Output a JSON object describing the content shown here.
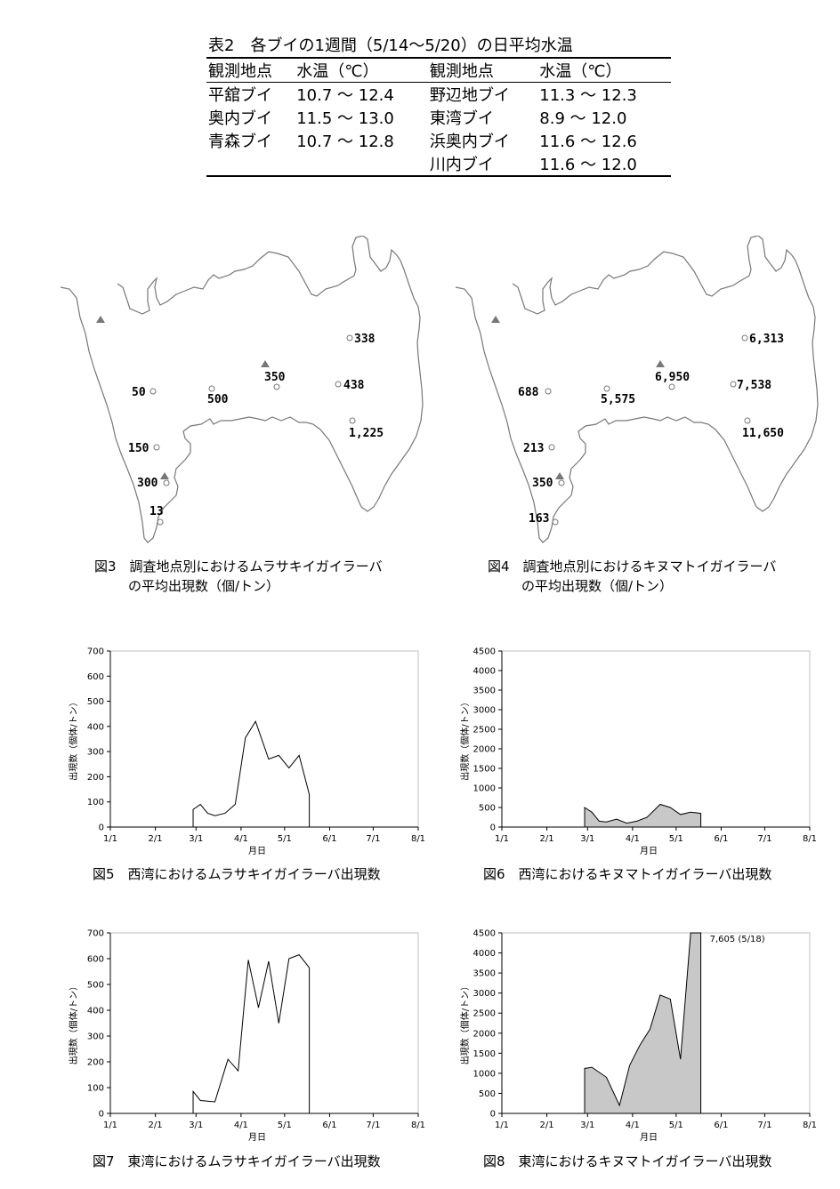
{
  "table2": {
    "caption": "表2　各ブイの1週間（5/14〜5/20）の日平均水温",
    "headers": [
      "観測地点",
      "水温（℃）",
      "観測地点",
      "水温（℃）"
    ],
    "rows": [
      [
        "平舘ブイ",
        "10.7 〜 12.4",
        "野辺地ブイ",
        "11.3 〜 12.3"
      ],
      [
        "奥内ブイ",
        "11.5 〜 13.0",
        "東湾ブイ",
        "8.9 〜 12.0"
      ],
      [
        "青森ブイ",
        "10.7 〜 12.8",
        "浜奥内ブイ",
        "11.6 〜 12.6"
      ],
      [
        "",
        "",
        "川内ブイ",
        "11.6 〜 12.0"
      ]
    ]
  },
  "fig3": {
    "caption_line1": "図3　調査地点別におけるムラサキイガイラーバ",
    "caption_line2": "の平均出現数（個/トン）",
    "labels": [
      "338",
      "350",
      "438",
      "50",
      "500",
      "1,225",
      "150",
      "300",
      "13"
    ]
  },
  "fig4": {
    "caption_line1": "図4　調査地点別におけるキヌマトイガイラーバ",
    "caption_line2": "の平均出現数（個/トン）",
    "labels": [
      "6,313",
      "6,950",
      "7,538",
      "688",
      "5,575",
      "11,650",
      "213",
      "350",
      "163"
    ]
  },
  "chart_data": [
    {
      "id": "fig5",
      "type": "line",
      "title": "図5　西湾におけるムラサキイガイラーバ出現数",
      "xlabel": "月日",
      "ylabel": "出現数（個体/トン）",
      "xticks": [
        "1/1",
        "2/1",
        "3/1",
        "4/1",
        "5/1",
        "6/1",
        "7/1",
        "8/1"
      ],
      "yticks": [
        0,
        100,
        200,
        300,
        400,
        500,
        600,
        700
      ],
      "ylim": [
        0,
        700
      ],
      "x": [
        "2/26",
        "3/3",
        "3/8",
        "3/13",
        "3/20",
        "3/27",
        "4/3",
        "4/10",
        "4/19",
        "4/26",
        "5/3",
        "5/10",
        "5/17"
      ],
      "xdays": [
        57,
        62,
        67,
        72,
        79,
        86,
        93,
        100,
        109,
        116,
        123,
        130,
        137
      ],
      "values": [
        70,
        90,
        55,
        45,
        55,
        90,
        355,
        420,
        270,
        285,
        235,
        285,
        130
      ],
      "fill": false
    },
    {
      "id": "fig6",
      "type": "area",
      "title": "図6　西湾におけるキヌマトイガイラーバ出現数",
      "xlabel": "月日",
      "ylabel": "出現数（個体/トン）",
      "xticks": [
        "1/1",
        "2/1",
        "3/1",
        "4/1",
        "5/1",
        "6/1",
        "7/1",
        "8/1"
      ],
      "yticks": [
        0,
        500,
        1000,
        1500,
        2000,
        2500,
        3000,
        3500,
        4000,
        4500
      ],
      "ylim": [
        0,
        4500
      ],
      "x": [
        "2/26",
        "3/3",
        "3/8",
        "3/13",
        "3/20",
        "3/27",
        "4/3",
        "4/10",
        "4/19",
        "4/26",
        "5/3",
        "5/10",
        "5/17"
      ],
      "xdays": [
        57,
        62,
        67,
        72,
        79,
        86,
        93,
        100,
        109,
        116,
        123,
        130,
        137
      ],
      "values": [
        500,
        380,
        150,
        130,
        200,
        100,
        150,
        250,
        580,
        500,
        320,
        380,
        350
      ],
      "fill": true
    },
    {
      "id": "fig7",
      "type": "line",
      "title": "図7　東湾におけるムラサキイガイラーバ出現数",
      "xlabel": "月日",
      "ylabel": "出現数（個体/トン）",
      "xticks": [
        "1/1",
        "2/1",
        "3/1",
        "4/1",
        "5/1",
        "6/1",
        "7/1",
        "8/1"
      ],
      "yticks": [
        0,
        100,
        200,
        300,
        400,
        500,
        600,
        700
      ],
      "ylim": [
        0,
        700
      ],
      "x": [
        "2/26",
        "3/3",
        "3/13",
        "3/22",
        "3/29",
        "4/5",
        "4/12",
        "4/19",
        "4/26",
        "5/3",
        "5/10",
        "5/17"
      ],
      "xdays": [
        57,
        62,
        72,
        81,
        88,
        95,
        102,
        109,
        116,
        123,
        130,
        137
      ],
      "values": [
        85,
        50,
        45,
        210,
        165,
        595,
        410,
        590,
        350,
        600,
        615,
        565
      ],
      "fill": false
    },
    {
      "id": "fig8",
      "type": "area",
      "title": "図8　東湾におけるキヌマトイガイラーバ出現数",
      "xlabel": "月日",
      "ylabel": "出現数（個体/トン）",
      "xticks": [
        "1/1",
        "2/1",
        "3/1",
        "4/1",
        "5/1",
        "6/1",
        "7/1",
        "8/1"
      ],
      "yticks": [
        0,
        500,
        1000,
        1500,
        2000,
        2500,
        3000,
        3500,
        4000,
        4500
      ],
      "ylim": [
        0,
        4500
      ],
      "x": [
        "2/26",
        "3/3",
        "3/13",
        "3/22",
        "3/29",
        "4/5",
        "4/12",
        "4/19",
        "4/26",
        "5/3",
        "5/10",
        "5/17"
      ],
      "xdays": [
        57,
        62,
        72,
        81,
        88,
        95,
        102,
        109,
        116,
        123,
        130,
        137
      ],
      "values": [
        1120,
        1150,
        900,
        200,
        1200,
        1700,
        2100,
        2950,
        2850,
        1350,
        4500,
        4500
      ],
      "annotation": "7,605 (5/18)",
      "fill": true
    }
  ]
}
